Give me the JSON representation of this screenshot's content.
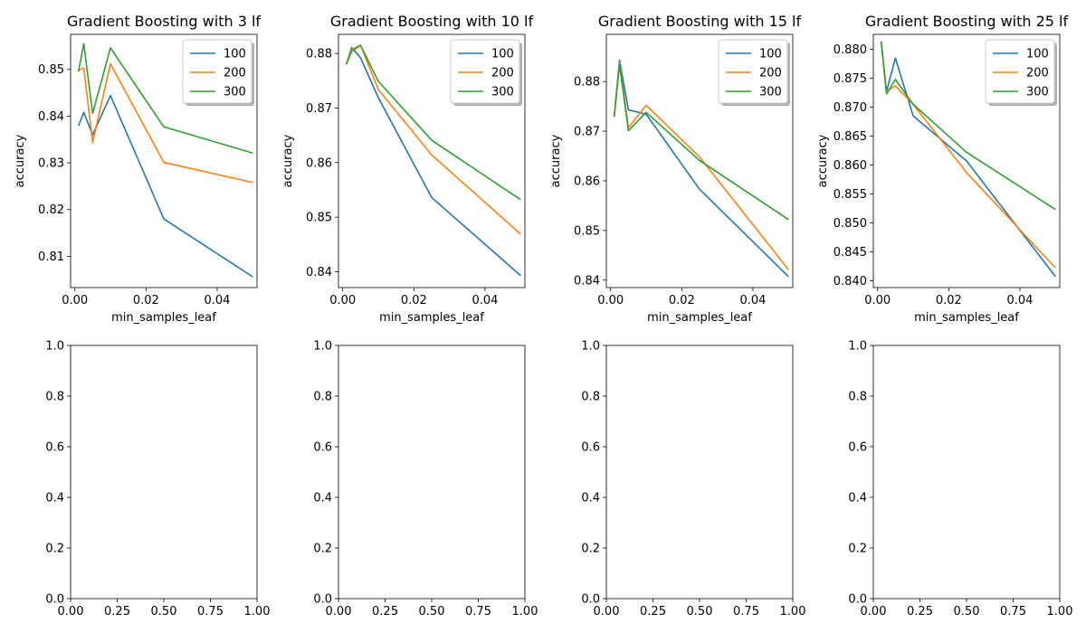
{
  "chart_data": [
    {
      "type": "line",
      "title": "Gradient Boosting with 3 lf",
      "xlabel": "min_samples_leaf",
      "ylabel": "accuracy",
      "xlim": [
        -0.0012,
        0.0512
      ],
      "ylim": [
        0.8033,
        0.8575
      ],
      "xticks": [
        0.0,
        0.02,
        0.04
      ],
      "xtick_labels": [
        "0.00",
        "0.02",
        "0.04"
      ],
      "yticks": [
        0.81,
        0.82,
        0.83,
        0.84,
        0.85
      ],
      "ytick_labels": [
        "0.81",
        "0.82",
        "0.83",
        "0.84",
        "0.85"
      ],
      "legend": "top-right",
      "x": [
        0.001,
        0.0025,
        0.005,
        0.01,
        0.025,
        0.05
      ],
      "series": [
        {
          "name": "100",
          "color": "#1f77b4",
          "values": [
            0.8379,
            0.8408,
            0.836,
            0.8444,
            0.818,
            0.8056
          ]
        },
        {
          "name": "200",
          "color": "#ff7f0e",
          "values": [
            0.8498,
            0.8503,
            0.8344,
            0.8512,
            0.8301,
            0.8258
          ]
        },
        {
          "name": "300",
          "color": "#2ca02c",
          "values": [
            0.8495,
            0.8555,
            0.8406,
            0.8546,
            0.8377,
            0.8321
          ]
        }
      ]
    },
    {
      "type": "line",
      "title": "Gradient Boosting with 10 lf",
      "xlabel": "min_samples_leaf",
      "ylabel": "accuracy",
      "xlim": [
        -0.0012,
        0.0512
      ],
      "ylim": [
        0.8371,
        0.8835
      ],
      "xticks": [
        0.0,
        0.02,
        0.04
      ],
      "xtick_labels": [
        "0.00",
        "0.02",
        "0.04"
      ],
      "yticks": [
        0.84,
        0.85,
        0.86,
        0.87,
        0.88
      ],
      "ytick_labels": [
        "0.84",
        "0.85",
        "0.86",
        "0.87",
        "0.88"
      ],
      "legend": "top-right",
      "x": [
        0.001,
        0.0025,
        0.005,
        0.01,
        0.025,
        0.05
      ],
      "series": [
        {
          "name": "100",
          "color": "#1f77b4",
          "values": [
            0.878,
            0.8811,
            0.8792,
            0.8719,
            0.8536,
            0.8393
          ]
        },
        {
          "name": "200",
          "color": "#ff7f0e",
          "values": [
            0.878,
            0.8807,
            0.8815,
            0.8734,
            0.8614,
            0.8469
          ]
        },
        {
          "name": "300",
          "color": "#2ca02c",
          "values": [
            0.878,
            0.8804,
            0.8815,
            0.8749,
            0.8641,
            0.8532
          ]
        }
      ]
    },
    {
      "type": "line",
      "title": "Gradient Boosting with 15 lf",
      "xlabel": "min_samples_leaf",
      "ylabel": "accuracy",
      "xlim": [
        -0.0012,
        0.0512
      ],
      "ylim": [
        0.8385,
        0.8895
      ],
      "xticks": [
        0.0,
        0.02,
        0.04
      ],
      "xtick_labels": [
        "0.00",
        "0.02",
        "0.04"
      ],
      "yticks": [
        0.84,
        0.85,
        0.86,
        0.87,
        0.88
      ],
      "ytick_labels": [
        "0.84",
        "0.85",
        "0.86",
        "0.87",
        "0.88"
      ],
      "legend": "top-right",
      "x": [
        0.001,
        0.0025,
        0.005,
        0.01,
        0.025,
        0.05
      ],
      "series": [
        {
          "name": "100",
          "color": "#1f77b4",
          "values": [
            0.8729,
            0.8843,
            0.8743,
            0.8734,
            0.8583,
            0.8407
          ]
        },
        {
          "name": "200",
          "color": "#ff7f0e",
          "values": [
            0.8729,
            0.8838,
            0.8707,
            0.8752,
            0.8648,
            0.8421
          ]
        },
        {
          "name": "300",
          "color": "#2ca02c",
          "values": [
            0.8729,
            0.8834,
            0.8701,
            0.8738,
            0.8641,
            0.8522
          ]
        }
      ]
    },
    {
      "type": "line",
      "title": "Gradient Boosting with 25 lf",
      "xlabel": "min_samples_leaf",
      "ylabel": "accuracy",
      "xlim": [
        -0.0012,
        0.0512
      ],
      "ylim": [
        0.8388,
        0.8826
      ],
      "xticks": [
        0.0,
        0.02,
        0.04
      ],
      "xtick_labels": [
        "0.00",
        "0.02",
        "0.04"
      ],
      "yticks": [
        0.84,
        0.845,
        0.85,
        0.855,
        0.86,
        0.865,
        0.87,
        0.875,
        0.88
      ],
      "ytick_labels": [
        "0.840",
        "0.845",
        "0.850",
        "0.855",
        "0.860",
        "0.865",
        "0.870",
        "0.875",
        "0.880"
      ],
      "legend": "top-right",
      "x": [
        0.001,
        0.0025,
        0.005,
        0.01,
        0.025,
        0.05
      ],
      "series": [
        {
          "name": "100",
          "color": "#1f77b4",
          "values": [
            0.8814,
            0.8727,
            0.8785,
            0.8685,
            0.8607,
            0.8407
          ]
        },
        {
          "name": "200",
          "color": "#ff7f0e",
          "values": [
            0.8814,
            0.8727,
            0.8737,
            0.8705,
            0.8587,
            0.8422
          ]
        },
        {
          "name": "300",
          "color": "#2ca02c",
          "values": [
            0.8814,
            0.8723,
            0.8748,
            0.8705,
            0.8622,
            0.8523
          ]
        }
      ]
    },
    {
      "type": "line",
      "title": "",
      "xlabel": "",
      "ylabel": "",
      "xlim": [
        0,
        1
      ],
      "ylim": [
        0,
        1
      ],
      "xticks": [
        0.0,
        0.25,
        0.5,
        0.75,
        1.0
      ],
      "xtick_labels": [
        "0.00",
        "0.25",
        "0.50",
        "0.75",
        "1.00"
      ],
      "yticks": [
        0.0,
        0.2,
        0.4,
        0.6,
        0.8,
        1.0
      ],
      "ytick_labels": [
        "0.0",
        "0.2",
        "0.4",
        "0.6",
        "0.8",
        "1.0"
      ],
      "series": []
    },
    {
      "type": "line",
      "title": "",
      "xlabel": "",
      "ylabel": "",
      "xlim": [
        0,
        1
      ],
      "ylim": [
        0,
        1
      ],
      "xticks": [
        0.0,
        0.25,
        0.5,
        0.75,
        1.0
      ],
      "xtick_labels": [
        "0.00",
        "0.25",
        "0.50",
        "0.75",
        "1.00"
      ],
      "yticks": [
        0.0,
        0.2,
        0.4,
        0.6,
        0.8,
        1.0
      ],
      "ytick_labels": [
        "0.0",
        "0.2",
        "0.4",
        "0.6",
        "0.8",
        "1.0"
      ],
      "series": []
    },
    {
      "type": "line",
      "title": "",
      "xlabel": "",
      "ylabel": "",
      "xlim": [
        0,
        1
      ],
      "ylim": [
        0,
        1
      ],
      "xticks": [
        0.0,
        0.25,
        0.5,
        0.75,
        1.0
      ],
      "xtick_labels": [
        "0.00",
        "0.25",
        "0.50",
        "0.75",
        "1.00"
      ],
      "yticks": [
        0.0,
        0.2,
        0.4,
        0.6,
        0.8,
        1.0
      ],
      "ytick_labels": [
        "0.0",
        "0.2",
        "0.4",
        "0.6",
        "0.8",
        "1.0"
      ],
      "series": []
    },
    {
      "type": "line",
      "title": "",
      "xlabel": "",
      "ylabel": "",
      "xlim": [
        0,
        1
      ],
      "ylim": [
        0,
        1
      ],
      "xticks": [
        0.0,
        0.25,
        0.5,
        0.75,
        1.0
      ],
      "xtick_labels": [
        "0.00",
        "0.25",
        "0.50",
        "0.75",
        "1.00"
      ],
      "yticks": [
        0.0,
        0.2,
        0.4,
        0.6,
        0.8,
        1.0
      ],
      "ytick_labels": [
        "0.0",
        "0.2",
        "0.4",
        "0.6",
        "0.8",
        "1.0"
      ],
      "series": []
    }
  ]
}
